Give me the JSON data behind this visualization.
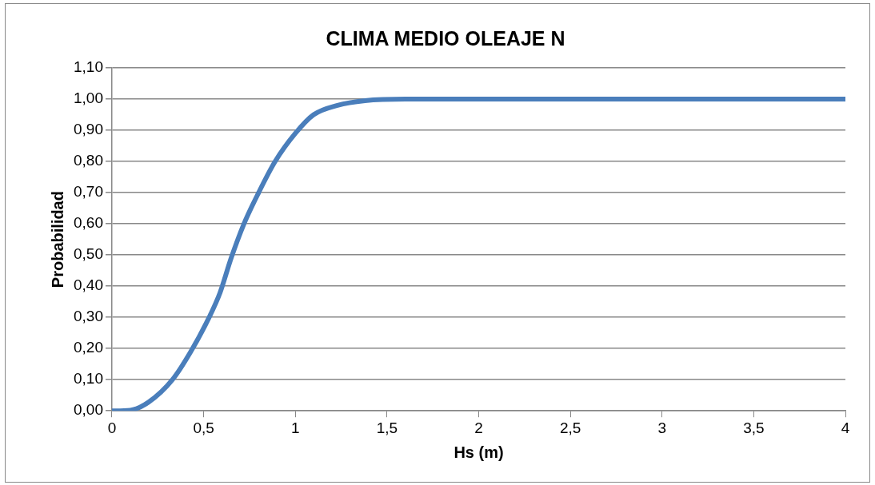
{
  "chart_data": {
    "type": "line",
    "title": "CLIMA MEDIO OLEAJE N",
    "xlabel": "Hs (m)",
    "ylabel": "Probabilidad",
    "x": [
      0,
      0.1,
      0.2,
      0.33,
      0.43,
      0.53,
      0.59,
      0.65,
      0.72,
      0.8,
      0.89,
      1.0,
      1.1,
      1.23,
      1.38,
      1.6,
      2,
      3,
      4
    ],
    "series": [
      {
        "color": "#4a7ebb",
        "values": [
          0,
          0.002,
          0.028,
          0.1,
          0.19,
          0.3,
          0.38,
          0.49,
          0.6,
          0.7,
          0.8,
          0.89,
          0.95,
          0.98,
          0.995,
          1,
          1,
          1,
          1
        ]
      }
    ],
    "xlim": [
      0,
      4
    ],
    "xticks": [
      0,
      {
        "value": 0.5,
        "label": "0,5"
      },
      1,
      {
        "value": 1.5,
        "label": "1,5"
      },
      2,
      {
        "value": 2.5,
        "label": "2,5"
      },
      3,
      {
        "value": 3.5,
        "label": "3,5"
      },
      4
    ],
    "ylim": [
      0,
      1.1
    ],
    "yticks": [
      {
        "value": 0,
        "label": "0,00"
      },
      {
        "value": 0.1,
        "label": "0,10"
      },
      {
        "value": 0.2,
        "label": "0,20"
      },
      {
        "value": 0.3,
        "label": "0,30"
      },
      {
        "value": 0.4,
        "label": "0,40"
      },
      {
        "value": 0.5,
        "label": "0,50"
      },
      {
        "value": 0.6,
        "label": "0,60"
      },
      {
        "value": 0.7,
        "label": "0,70"
      },
      {
        "value": 0.8,
        "label": "0,80"
      },
      {
        "value": 0.9,
        "label": "0,90"
      },
      {
        "value": 1,
        "label": "1,00"
      },
      {
        "value": 1.1,
        "label": "1,10"
      }
    ],
    "grid": "y",
    "legend": false,
    "marker": "none",
    "line_style": "solid"
  }
}
